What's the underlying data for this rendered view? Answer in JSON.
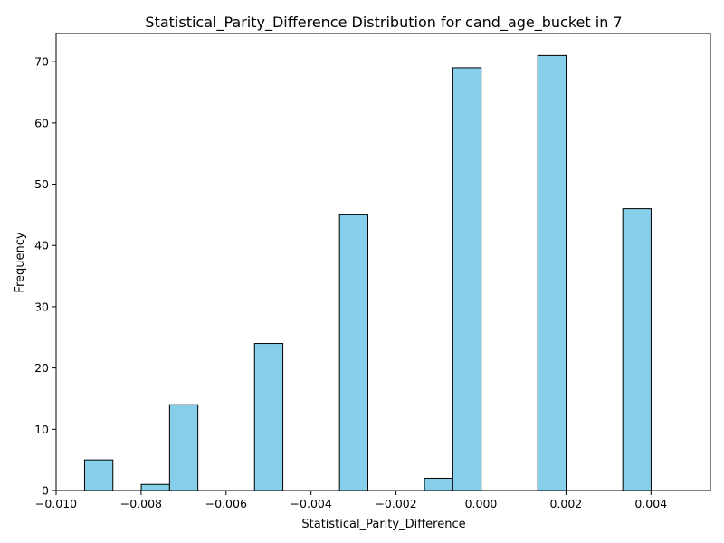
{
  "chart_data": {
    "type": "bar",
    "title": "Statistical_Parity_Difference Distribution for cand_age_bucket in 7",
    "xlabel": "Statistical_Parity_Difference",
    "ylabel": "Frequency",
    "xlim": [
      -0.01,
      0.0054
    ],
    "ylim": [
      0,
      74.6
    ],
    "grid": false,
    "bar_color": "#87ceeb",
    "edge_color": "#000000",
    "x_ticks": [
      -0.01,
      -0.008,
      -0.006,
      -0.004,
      -0.002,
      0.0,
      0.002,
      0.004
    ],
    "x_tick_labels": [
      "−0.010",
      "−0.008",
      "−0.006",
      "−0.004",
      "−0.002",
      "0.000",
      "0.002",
      "0.004"
    ],
    "y_ticks": [
      0,
      10,
      20,
      30,
      40,
      50,
      60,
      70
    ],
    "y_tick_labels": [
      "0",
      "10",
      "20",
      "30",
      "40",
      "50",
      "60",
      "70"
    ],
    "bin_start": -0.00933,
    "bin_width": 0.0006667,
    "values": [
      5,
      0,
      1,
      14,
      0,
      0,
      24,
      0,
      0,
      45,
      0,
      0,
      2,
      69,
      0,
      0,
      71,
      0,
      0,
      46
    ]
  }
}
